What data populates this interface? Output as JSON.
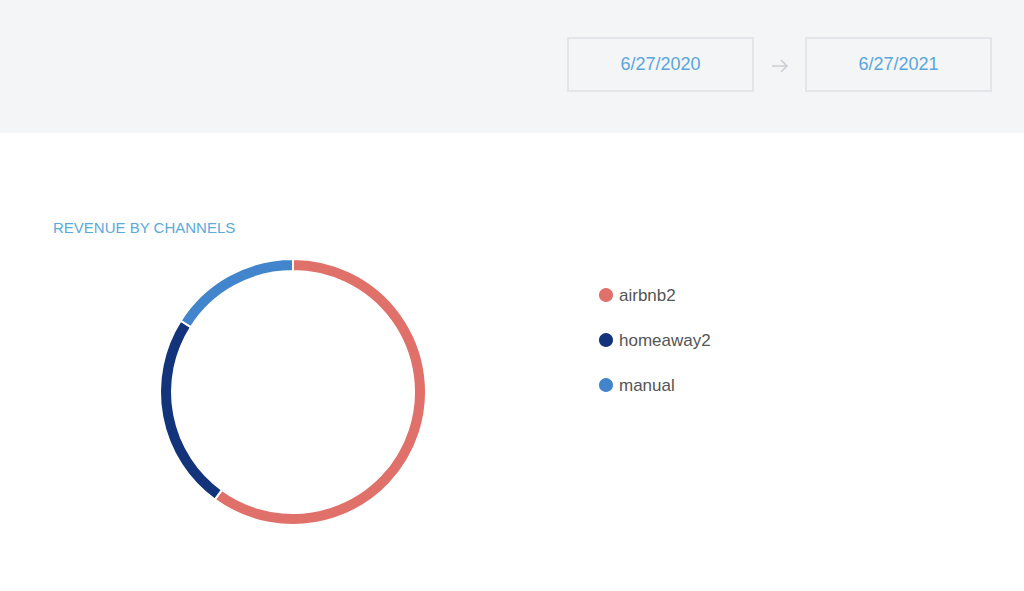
{
  "header": {
    "start_date": "6/27/2020",
    "end_date": "6/27/2021"
  },
  "chart_data": {
    "type": "pie",
    "title": "REVENUE BY CHANNELS",
    "categories": [
      "airbnb2",
      "homeaway2",
      "manual"
    ],
    "values": [
      60,
      24,
      16
    ],
    "colors": [
      "#e0706a",
      "#13347a",
      "#4285cd"
    ],
    "legend": "right"
  }
}
